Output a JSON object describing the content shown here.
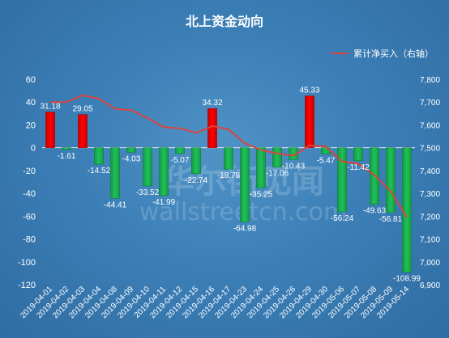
{
  "chart_data": {
    "type": "bar",
    "title": "北上资金动向",
    "categories": [
      "2019-04-01",
      "2019-04-02",
      "2019-04-03",
      "2019-04-04",
      "2019-04-08",
      "2019-04-09",
      "2019-04-10",
      "2019-04-11",
      "2019-04-12",
      "2019-04-15",
      "2019-04-16",
      "2019-04-17",
      "2019-04-23",
      "2019-04-24",
      "2019-04-25",
      "2019-04-26",
      "2019-04-29",
      "2019-04-30",
      "2019-05-06",
      "2019-05-07",
      "2019-05-08",
      "2019-05-09",
      "2019-05-14"
    ],
    "values": [
      31.18,
      -1.61,
      29.05,
      -14.52,
      -44.41,
      -4.03,
      -33.52,
      -41.99,
      -5.07,
      -22.74,
      34.32,
      -18.78,
      -64.98,
      -35.25,
      -17.06,
      -10.43,
      45.33,
      -5.47,
      -56.24,
      -11.42,
      -49.63,
      -56.81,
      -108.99
    ],
    "value_labels": [
      "31.18",
      "-1.61",
      "29.05",
      "-14.52",
      "-44.41",
      "-4.03",
      "-33.52",
      "-41.99",
      "-5.07",
      "-22.74",
      "34.32",
      "-18.78",
      "-64.98",
      "-35.25",
      "-17.06",
      "-10.43",
      "45.33",
      "-5.47",
      "-56.24",
      "-11.42",
      "-49.63",
      "-56.81",
      "-108.99"
    ],
    "ylim": [
      -120,
      60
    ],
    "yticks": [
      60,
      40,
      20,
      0,
      -20,
      -40,
      -60,
      -80,
      -100,
      -120
    ],
    "ytick_labels": [
      "60",
      "40",
      "20",
      "0",
      "-20",
      "-40",
      "-60",
      "-80",
      "-100",
      "-120"
    ],
    "positive_color": "#ff0000",
    "negative_color": "#22c05a",
    "line_series": {
      "name": "累计净买入（右轴）",
      "color": "#d9453d",
      "axis": "right",
      "values": [
        7700,
        7700,
        7730,
        7715,
        7670,
        7665,
        7630,
        7590,
        7585,
        7565,
        7595,
        7580,
        7520,
        7490,
        7475,
        7465,
        7510,
        7505,
        7440,
        7430,
        7380,
        7310,
        7195
      ]
    },
    "y2lim": [
      6900,
      7800
    ],
    "y2ticks": [
      7800,
      7700,
      7600,
      7500,
      7400,
      7300,
      7200,
      7100,
      7000,
      6900
    ],
    "y2tick_labels": [
      "7,800",
      "7,700",
      "7,600",
      "7,500",
      "7,400",
      "7,300",
      "7,200",
      "7,100",
      "7,000",
      "6,900"
    ],
    "legend": {
      "placement": "top-right",
      "entries": [
        "累计净买入（右轴）"
      ]
    },
    "grid": false
  },
  "watermark": {
    "main": "华尔街见闻",
    "sub": "wallstreetcn.com"
  }
}
